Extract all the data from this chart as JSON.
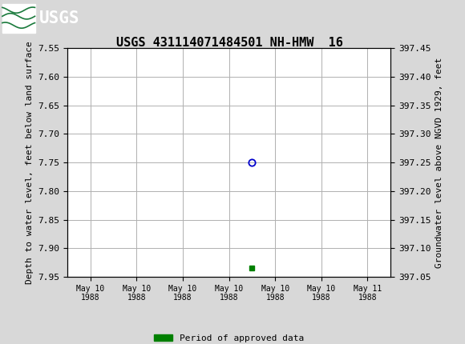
{
  "title": "USGS 431114071484501 NH-HMW  16",
  "ylabel_left": "Depth to water level, feet below land surface",
  "ylabel_right": "Groundwater level above NGVD 1929, feet",
  "ylim_left": [
    7.55,
    7.95
  ],
  "ylim_right_top": 397.45,
  "ylim_right_bottom": 397.05,
  "yticks_left": [
    7.55,
    7.6,
    7.65,
    7.7,
    7.75,
    7.8,
    7.85,
    7.9,
    7.95
  ],
  "yticks_right": [
    397.45,
    397.4,
    397.35,
    397.3,
    397.25,
    397.2,
    397.15,
    397.1,
    397.05
  ],
  "data_point_x": 3.5,
  "data_point_y": 7.75,
  "green_point_x": 3.5,
  "green_point_y": 7.935,
  "xlim": [
    -0.5,
    6.5
  ],
  "xtick_positions": [
    0,
    1,
    2,
    3,
    4,
    5,
    6
  ],
  "xtick_labels": [
    "May 10\n1988",
    "May 10\n1988",
    "May 10\n1988",
    "May 10\n1988",
    "May 10\n1988",
    "May 10\n1988",
    "May 11\n1988"
  ],
  "grid_color": "#b0b0b0",
  "fig_bg_color": "#d8d8d8",
  "plot_bg_color": "#ffffff",
  "header_color": "#1a7a3c",
  "data_point_color": "#0000cc",
  "green_color": "#008000",
  "legend_label": "Period of approved data",
  "font_family": "monospace",
  "title_fontsize": 11,
  "tick_fontsize": 8,
  "label_fontsize": 8,
  "xtick_fontsize": 7
}
